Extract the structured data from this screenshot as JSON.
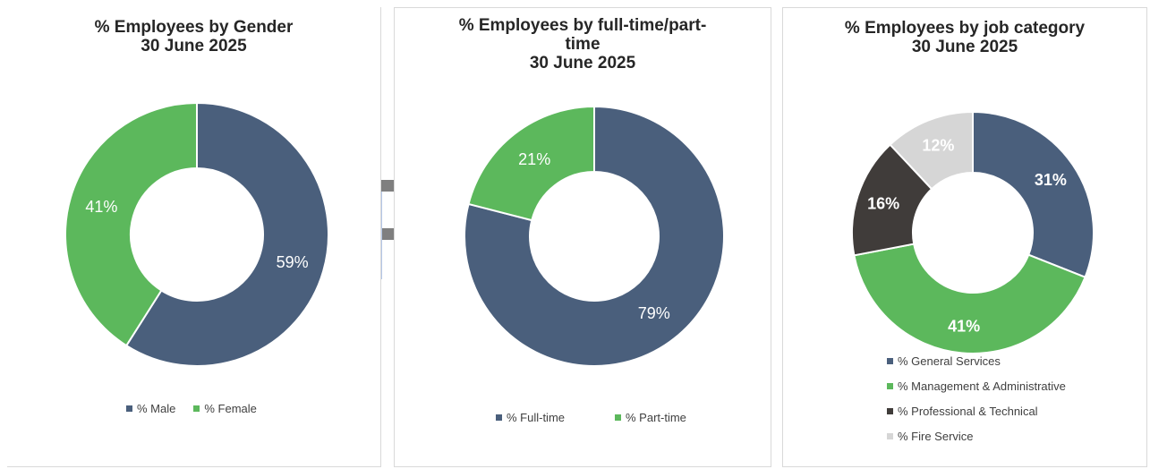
{
  "chart_data": [
    {
      "type": "pie",
      "title_lines": [
        "% Employees by Gender",
        "30 June 2025"
      ],
      "donut": true,
      "labels": [
        "% Male",
        "% Female"
      ],
      "values": [
        59,
        41
      ],
      "data_labels": [
        "59%",
        "41%"
      ],
      "colors": [
        "#4a5f7c",
        "#5cb85c"
      ],
      "legend": "bottom",
      "label_bold": false
    },
    {
      "type": "pie",
      "title_lines": [
        "% Employees by full-time/part-",
        "time",
        "30 June 2025"
      ],
      "donut": true,
      "labels": [
        "% Full-time",
        "% Part-time"
      ],
      "values": [
        79,
        21
      ],
      "data_labels": [
        "79%",
        "21%"
      ],
      "colors": [
        "#4a5f7c",
        "#5cb85c"
      ],
      "legend": "bottom",
      "label_bold": false
    },
    {
      "type": "pie",
      "title_lines": [
        "% Employees by job category",
        "30 June 2025"
      ],
      "donut": true,
      "labels": [
        "% General Services",
        "% Management & Administrative",
        "% Professional & Technical",
        "% Fire Service"
      ],
      "values": [
        31,
        41,
        16,
        12
      ],
      "data_labels": [
        "31%",
        "41%",
        "16%",
        "12%"
      ],
      "colors": [
        "#4a5f7c",
        "#5cb85c",
        "#403c3a",
        "#d6d6d6"
      ],
      "legend": "bottom",
      "label_bold": true
    }
  ]
}
